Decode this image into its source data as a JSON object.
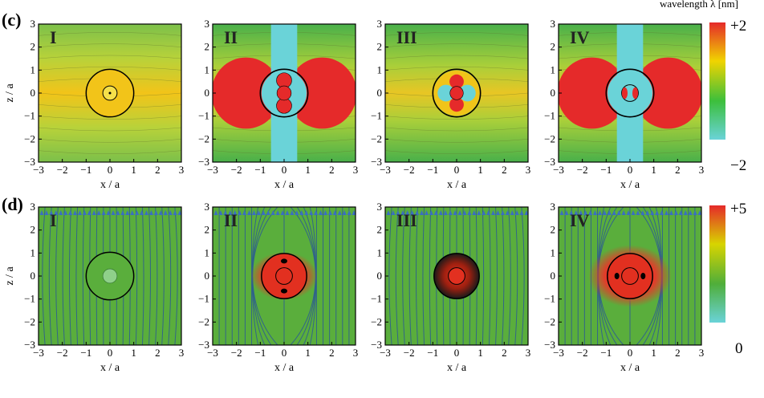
{
  "header": {
    "axis_caption": "wavelength λ [nm]"
  },
  "rows": [
    {
      "label": "(c)",
      "panels": [
        "I",
        "II",
        "III",
        "IV"
      ],
      "colorbar": {
        "max": "+2",
        "min": "−2",
        "colors": [
          "#e52a2a",
          "#f0d400",
          "#3cbf3c",
          "#6ad3d8"
        ]
      }
    },
    {
      "label": "(d)",
      "panels": [
        "I",
        "II",
        "III",
        "IV"
      ],
      "colorbar": {
        "max": "+5",
        "min": "0",
        "colors": [
          "#e52a2a",
          "#d8d400",
          "#4fae3a",
          "#6ad3d8"
        ]
      }
    }
  ],
  "axes": {
    "xlabel": "x / a",
    "ylabel": "z / a",
    "ticks": [
      "−3",
      "−2",
      "−1",
      "0",
      "1",
      "2",
      "3"
    ]
  }
}
